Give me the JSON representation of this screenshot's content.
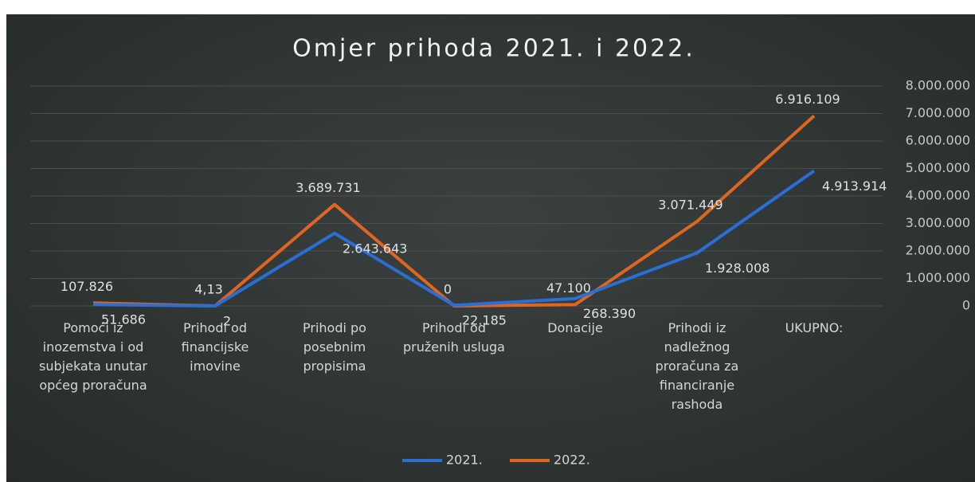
{
  "chart_data": {
    "type": "line",
    "title": "Omjer prihoda 2021. i 2022.",
    "categories": [
      "Pomoći iz inozemstva i od subjekata unutar općeg proračuna",
      "Prihodi od financijske imovine",
      "Prihodi po posebnim propisima",
      "Prihodi od pruženih usluga",
      "Donacije",
      "Prihodi iz nadležnog proračuna za financiranje rashoda",
      "UKUPNO:"
    ],
    "series": [
      {
        "name": "2021.",
        "color": "#2a6fd6",
        "values": [
          51686,
          2,
          2643643,
          22185,
          268390,
          1928008,
          4913914
        ],
        "value_labels": [
          "51.686",
          "2",
          "2.643.643",
          "22.185",
          "268.390",
          "1.928.008",
          "4.913.914"
        ]
      },
      {
        "name": "2022.",
        "color": "#e0661e",
        "values": [
          107826,
          4.13,
          3689731,
          0,
          47100,
          3071449,
          6916109
        ],
        "value_labels": [
          "107.826",
          "4,13",
          "3.689.731",
          "0",
          "47.100",
          "3.071.449",
          "6.916.109"
        ]
      }
    ],
    "ylim": [
      0,
      8000000
    ],
    "yticks": [
      0,
      {
        "value": 1000000,
        "label": "1.000.000"
      },
      {
        "value": 2000000,
        "label": "2.000.000"
      },
      {
        "value": 3000000,
        "label": "3.000.000"
      },
      {
        "value": 4000000,
        "label": "4.000.000"
      },
      {
        "value": 5000000,
        "label": "5.000.000"
      },
      {
        "value": 6000000,
        "label": "6.000.000"
      },
      {
        "value": 7000000,
        "label": "7.000.000"
      },
      {
        "value": 8000000,
        "label": "8.000.000"
      }
    ],
    "y_axis_side": "right",
    "grid": true,
    "legend": "bottom"
  }
}
